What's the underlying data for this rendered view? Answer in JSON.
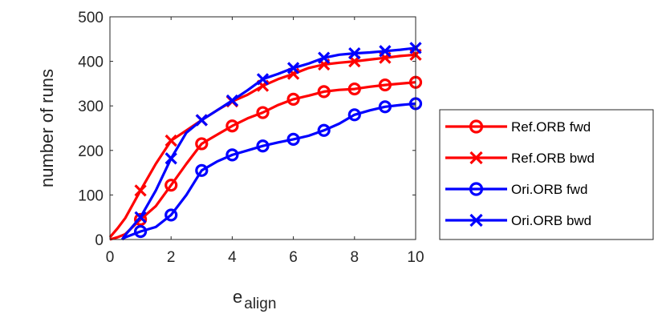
{
  "chart_data": {
    "type": "line",
    "xlabel_main": "e",
    "xlabel_sub": "align",
    "ylabel": "number of runs",
    "xlim": [
      0,
      10
    ],
    "ylim": [
      0,
      500
    ],
    "xticks": [
      0,
      2,
      4,
      6,
      8,
      10
    ],
    "yticks": [
      0,
      100,
      200,
      300,
      400,
      500
    ],
    "grid": false,
    "legend_position": "right",
    "series": [
      {
        "name": "Ref.ORB fwd",
        "color": "#ff0000",
        "marker": "circle",
        "x": [
          0,
          0.25,
          0.5,
          1,
          1.5,
          2,
          2.5,
          3,
          3.5,
          4,
          4.5,
          5,
          5.5,
          6,
          6.5,
          7,
          7.5,
          8,
          8.5,
          9,
          9.5,
          10
        ],
        "y": [
          0,
          5,
          12,
          45,
          75,
          122,
          170,
          215,
          235,
          255,
          272,
          285,
          302,
          315,
          323,
          332,
          336,
          338,
          343,
          347,
          350,
          353
        ]
      },
      {
        "name": "Ref.ORB bwd",
        "color": "#ff0000",
        "marker": "x",
        "x": [
          0,
          0.25,
          0.5,
          1,
          1.5,
          2,
          2.5,
          3,
          3.5,
          4,
          4.5,
          5,
          5.5,
          6,
          6.5,
          7,
          7.5,
          8,
          8.5,
          9,
          9.5,
          10
        ],
        "y": [
          5,
          25,
          48,
          110,
          170,
          222,
          245,
          268,
          290,
          310,
          325,
          345,
          360,
          372,
          385,
          393,
          397,
          400,
          404,
          408,
          412,
          415
        ]
      },
      {
        "name": "Ori.ORB fwd",
        "color": "#0000ff",
        "marker": "circle",
        "x": [
          0.4,
          0.5,
          1,
          1.5,
          2,
          2.5,
          3,
          3.5,
          4,
          4.5,
          5,
          5.5,
          6,
          6.5,
          7,
          7.5,
          8,
          8.5,
          9,
          9.5,
          10
        ],
        "y": [
          0,
          5,
          18,
          28,
          55,
          100,
          155,
          175,
          190,
          200,
          210,
          218,
          225,
          233,
          245,
          260,
          280,
          290,
          298,
          302,
          305
        ]
      },
      {
        "name": "Ori.ORB bwd",
        "color": "#0000ff",
        "marker": "x",
        "x": [
          0.4,
          0.5,
          1,
          1.5,
          2,
          2.5,
          3,
          3.5,
          4,
          4.5,
          5,
          5.5,
          6,
          6.5,
          7,
          7.5,
          8,
          8.5,
          9,
          9.5,
          10
        ],
        "y": [
          0,
          10,
          50,
          110,
          182,
          240,
          268,
          290,
          312,
          335,
          360,
          372,
          385,
          395,
          408,
          415,
          418,
          420,
          423,
          426,
          430
        ]
      }
    ]
  }
}
